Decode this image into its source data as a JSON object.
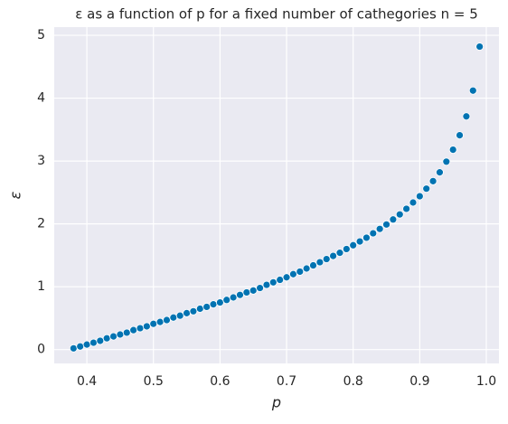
{
  "chart_data": {
    "type": "scatter",
    "title": "ε as a function of p for a fixed number of cathegories n = 5",
    "xlabel": "p",
    "ylabel": "ε",
    "x": [
      0.38,
      0.39,
      0.4,
      0.41,
      0.42,
      0.43,
      0.44,
      0.45,
      0.46,
      0.47,
      0.48,
      0.49,
      0.5,
      0.51,
      0.52,
      0.53,
      0.54,
      0.55,
      0.56,
      0.57,
      0.58,
      0.59,
      0.6,
      0.61,
      0.62,
      0.63,
      0.64,
      0.65,
      0.66,
      0.67,
      0.68,
      0.69,
      0.7,
      0.71,
      0.72,
      0.73,
      0.74,
      0.75,
      0.76,
      0.77,
      0.78,
      0.79,
      0.8,
      0.81,
      0.82,
      0.83,
      0.84,
      0.85,
      0.86,
      0.87,
      0.88,
      0.89,
      0.9,
      0.91,
      0.92,
      0.93,
      0.94,
      0.95,
      0.96,
      0.97,
      0.98,
      0.99
    ],
    "values": [
      0.02,
      0.05,
      0.08,
      0.11,
      0.14,
      0.18,
      0.21,
      0.24,
      0.27,
      0.31,
      0.34,
      0.37,
      0.41,
      0.44,
      0.47,
      0.51,
      0.54,
      0.58,
      0.61,
      0.65,
      0.68,
      0.72,
      0.75,
      0.79,
      0.83,
      0.87,
      0.91,
      0.94,
      0.98,
      1.03,
      1.07,
      1.11,
      1.15,
      1.2,
      1.24,
      1.29,
      1.34,
      1.39,
      1.44,
      1.49,
      1.54,
      1.6,
      1.66,
      1.72,
      1.78,
      1.85,
      1.92,
      1.99,
      2.07,
      2.15,
      2.24,
      2.34,
      2.44,
      2.56,
      2.68,
      2.82,
      2.99,
      3.18,
      3.41,
      3.71,
      4.12,
      4.82
    ],
    "color": "#0173b2",
    "xlim": [
      0.351,
      1.019
    ],
    "ylim": [
      -0.22,
      5.13
    ],
    "xticks": [
      0.4,
      0.5,
      0.6,
      0.7,
      0.8,
      0.9,
      {
        "value": 1,
        "label": "1.0"
      }
    ],
    "yticks": [
      0,
      1,
      2,
      3,
      4,
      5
    ],
    "grid": true
  }
}
